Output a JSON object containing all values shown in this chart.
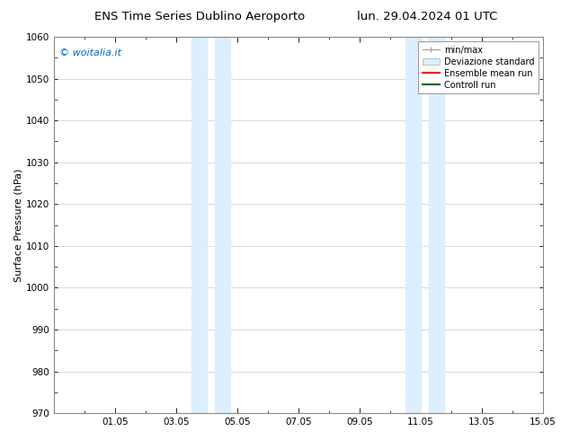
{
  "title_left": "ENS Time Series Dublino Aeroporto",
  "title_right": "lun. 29.04.2024 01 UTC",
  "ylabel": "Surface Pressure (hPa)",
  "ylim": [
    970,
    1060
  ],
  "yticks": [
    970,
    980,
    990,
    1000,
    1010,
    1020,
    1030,
    1040,
    1050,
    1060
  ],
  "xlim": [
    0.0,
    16.0
  ],
  "xtick_labels": [
    "01.05",
    "03.05",
    "05.05",
    "07.05",
    "09.05",
    "11.05",
    "13.05",
    "15.05"
  ],
  "xtick_positions": [
    2.0,
    4.0,
    6.0,
    8.0,
    10.0,
    12.0,
    14.0,
    16.0
  ],
  "shaded_bands": [
    {
      "x_start": 4.5,
      "x_end": 5.0
    },
    {
      "x_start": 5.25,
      "x_end": 5.75
    },
    {
      "x_start": 11.5,
      "x_end": 12.0
    },
    {
      "x_start": 12.25,
      "x_end": 12.75
    }
  ],
  "shaded_color": "#ddeeff",
  "watermark_text": "© woitalia.it",
  "watermark_color": "#0066cc",
  "background_color": "#ffffff",
  "plot_bg_color": "#ffffff",
  "grid_color": "#cccccc",
  "spine_color": "#888888",
  "legend_items": [
    {
      "label": "min/max",
      "color": "#aaaaaa"
    },
    {
      "label": "Deviazione standard",
      "color": "#ccddee"
    },
    {
      "label": "Ensemble mean run",
      "color": "#ff0000"
    },
    {
      "label": "Controll run",
      "color": "#006600"
    }
  ],
  "font_size_title": 9.5,
  "font_size_ylabel": 8,
  "font_size_tick": 7.5,
  "font_size_legend": 7,
  "font_size_watermark": 8
}
